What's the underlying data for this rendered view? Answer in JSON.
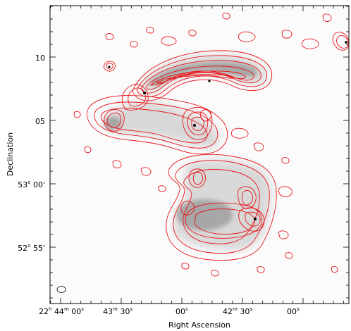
{
  "chart_data": {
    "type": "contour",
    "title": "",
    "xlabel": "Right Ascension",
    "ylabel": "Declination",
    "x_ticks": [
      {
        "h": "22",
        "hs": "h",
        "m": "44",
        "ms": "m",
        "s": "00",
        "ss": "s"
      },
      {
        "h": "",
        "hs": "",
        "m": "43",
        "ms": "m",
        "s": "30",
        "ss": "s"
      },
      {
        "h": "",
        "hs": "",
        "m": "",
        "ms": "",
        "s": "00",
        "ss": "s"
      },
      {
        "h": "",
        "hs": "",
        "m": "42",
        "ms": "m",
        "s": "30",
        "ss": "s"
      },
      {
        "h": "",
        "hs": "",
        "m": "",
        "ms": "",
        "s": "00",
        "ss": "s"
      }
    ],
    "y_ticks": [
      {
        "deg": "",
        "ds": "",
        "arcmin": "10",
        "as": ""
      },
      {
        "deg": "",
        "ds": "",
        "arcmin": "05",
        "as": ""
      },
      {
        "deg": "53",
        "ds": "o",
        "arcmin": "00",
        "as": "'"
      },
      {
        "deg": "52",
        "ds": "o",
        "arcmin": "55",
        "as": "'"
      }
    ],
    "contour_color": "#e8161b",
    "background": "grayscale radio image",
    "beam_shape": "ellipse, bottom-left"
  }
}
